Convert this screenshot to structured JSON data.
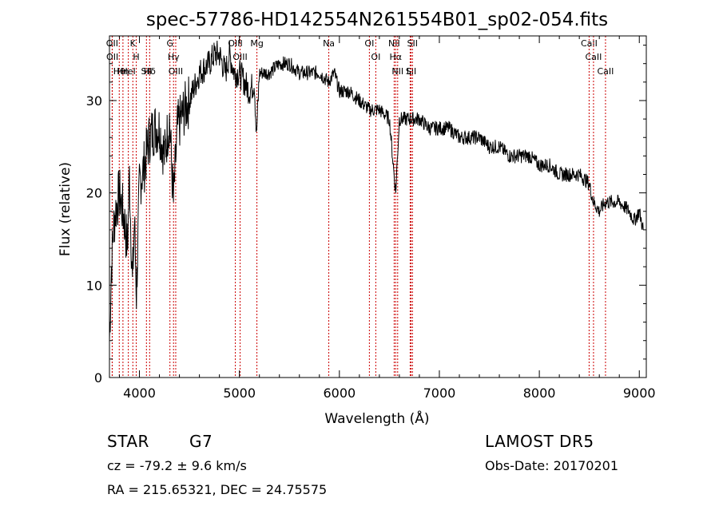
{
  "chart_data": {
    "type": "line",
    "title": "spec-57786-HD142554N261554B01_sp02-054.fits",
    "xlabel": "Wavelength (Å)",
    "ylabel": "Flux (relative)",
    "xlim": [
      3700,
      9070
    ],
    "ylim": [
      0,
      37
    ],
    "xticks": [
      4000,
      5000,
      6000,
      7000,
      8000,
      9000
    ],
    "yticks": [
      0,
      10,
      20,
      30
    ],
    "grid": false,
    "series": [
      {
        "values_description": "approximate continuum of the stellar spectrum",
        "x": [
          3700,
          3720,
          3740,
          3760,
          3800,
          3850,
          3880,
          3900,
          3930,
          3950,
          3970,
          4000,
          4050,
          4100,
          4150,
          4200,
          4250,
          4300,
          4340,
          4380,
          4450,
          4500,
          4600,
          4700,
          4750,
          4800,
          4860,
          4900,
          4950,
          5000,
          5050,
          5100,
          5150,
          5170,
          5200,
          5300,
          5400,
          5500,
          5600,
          5700,
          5800,
          5890,
          5950,
          6000,
          6100,
          6200,
          6300,
          6400,
          6500,
          6563,
          6600,
          6700,
          6800,
          6900,
          7000,
          7100,
          7200,
          7300,
          7400,
          7500,
          7600,
          7700,
          7800,
          7900,
          8000,
          8100,
          8200,
          8300,
          8400,
          8498,
          8542,
          8600,
          8662,
          8700,
          8800,
          8900,
          8950,
          9000,
          9040
        ],
        "y": [
          4,
          12,
          16,
          18,
          20,
          17,
          14,
          22,
          10,
          17,
          9,
          21,
          23,
          26,
          27,
          27,
          24,
          28,
          19,
          27,
          29,
          30,
          33,
          34,
          35,
          35,
          33,
          35,
          33,
          33,
          32,
          31,
          32,
          26,
          33,
          33,
          34,
          34,
          33,
          33,
          33,
          32,
          33,
          31,
          31,
          30,
          29,
          29,
          28,
          20,
          28,
          28,
          28,
          27,
          27,
          27,
          26,
          26,
          26,
          25,
          25,
          24,
          24,
          24,
          23,
          23,
          22,
          22,
          22,
          21,
          19,
          18,
          19,
          19,
          19,
          18,
          17,
          18,
          16
        ]
      }
    ],
    "line_marks": [
      {
        "labels": [
          "Hθ"
        ],
        "x": 3798
      },
      {
        "labels": [
          "OII"
        ],
        "x": 3727
      },
      {
        "labels": [
          "OII"
        ],
        "x": 3729
      },
      {
        "labels": [
          "Hη"
        ],
        "x": 3835
      },
      {
        "labels": [
          "HeI"
        ],
        "x": 3889
      },
      {
        "labels": [
          "K"
        ],
        "x": 3934
      },
      {
        "labels": [
          "H"
        ],
        "x": 3968
      },
      {
        "labels": [
          "SII"
        ],
        "x": 4070
      },
      {
        "labels": [
          "Hδ"
        ],
        "x": 4102
      },
      {
        "labels": [
          "OIII"
        ],
        "x": 4363
      },
      {
        "labels": [
          "Hγ"
        ],
        "x": 4341
      },
      {
        "labels": [
          "G"
        ],
        "x": 4305
      },
      {
        "labels": [
          "OIII"
        ],
        "x": 4959
      },
      {
        "labels": [
          "OIII"
        ],
        "x": 5007
      },
      {
        "labels": [
          "Mg"
        ],
        "x": 5175
      },
      {
        "labels": [
          "Na"
        ],
        "x": 5894
      },
      {
        "labels": [
          "OI"
        ],
        "x": 6300
      },
      {
        "labels": [
          "OI"
        ],
        "x": 6364
      },
      {
        "labels": [
          "Hα"
        ],
        "x": 6563
      },
      {
        "labels": [
          "NII"
        ],
        "x": 6548
      },
      {
        "labels": [
          "NII"
        ],
        "x": 6583
      },
      {
        "labels": [
          "SII"
        ],
        "x": 6717
      },
      {
        "labels": [
          "Li"
        ],
        "x": 6708
      },
      {
        "labels": [
          "SII"
        ],
        "x": 6731
      },
      {
        "labels": [
          "CaII"
        ],
        "x": 8498
      },
      {
        "labels": [
          "CaII"
        ],
        "x": 8542
      },
      {
        "labels": [
          "CaII"
        ],
        "x": 8662
      }
    ],
    "line_color": "#cc0000"
  },
  "info": {
    "object_class": "STAR",
    "subclass": "G7",
    "survey": "LAMOST DR5",
    "redshift": "cz = -79.2 ± 9.6 km/s",
    "obs_date": "Obs-Date: 20170201",
    "coords": "RA = 215.65321, DEC =  24.75575"
  }
}
